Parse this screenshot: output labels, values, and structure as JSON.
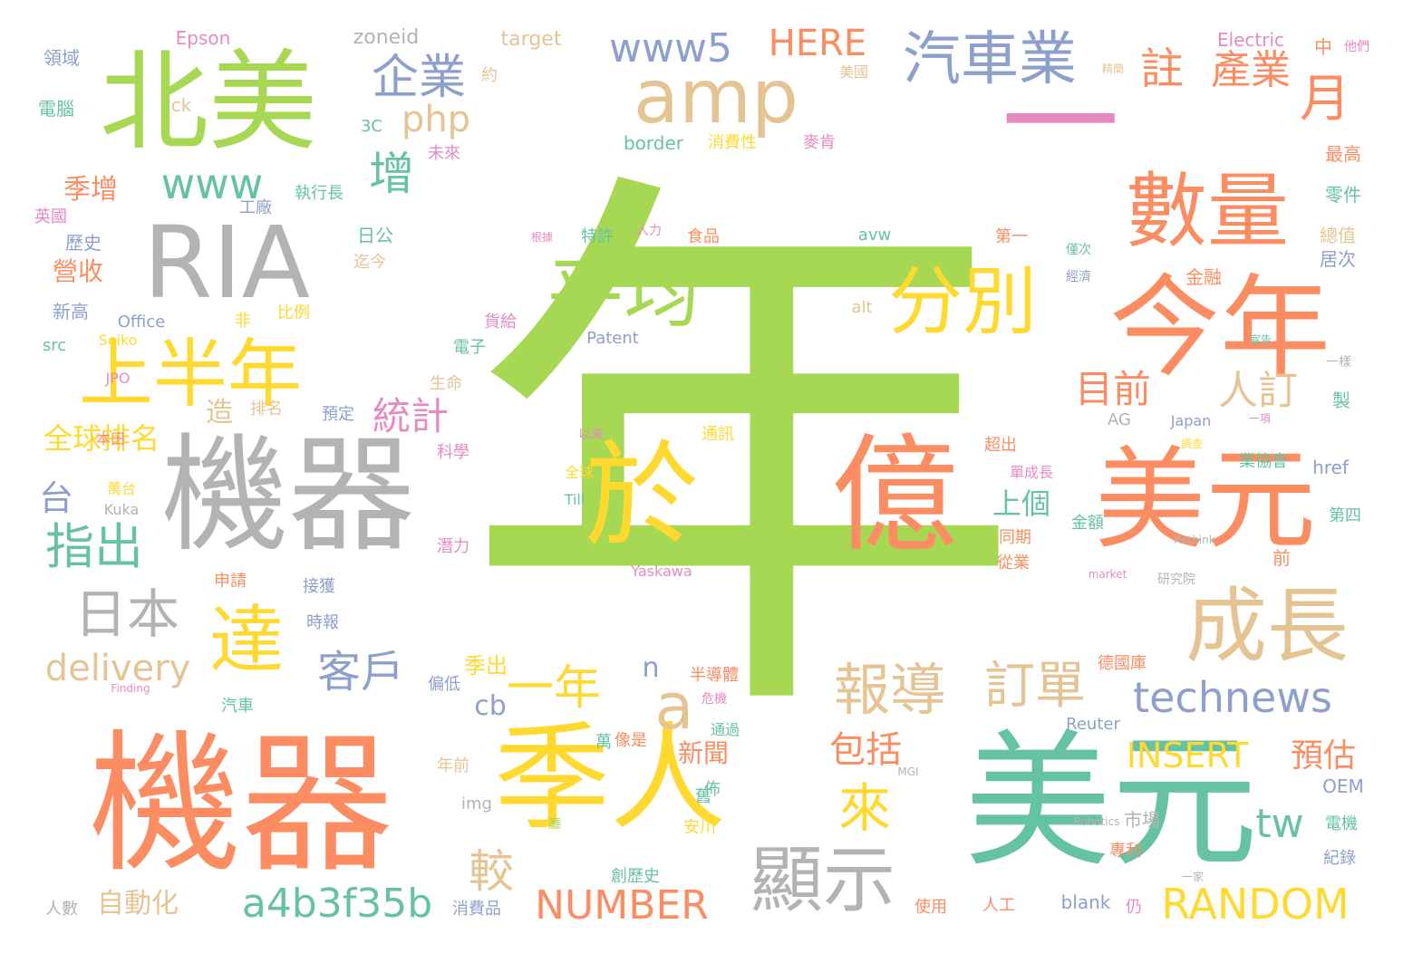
{
  "wordcloud": {
    "colors": {
      "green": "#a6d854",
      "orange": "#fc8d62",
      "teal": "#66c2a5",
      "yellow": "#ffd92f",
      "tan": "#e5c494",
      "gray": "#b3b3b3",
      "blue": "#8da0cb",
      "pink": "#e78ac3"
    },
    "words": [
      {
        "text": "年",
        "color": "green"
      },
      {
        "text": "一",
        "color": "pink"
      },
      {
        "text": "機器",
        "color": "orange"
      },
      {
        "text": "美元",
        "color": "teal"
      },
      {
        "text": "北美",
        "color": "green"
      },
      {
        "text": "RIA",
        "color": "gray"
      },
      {
        "text": "機器",
        "color": "gray"
      },
      {
        "text": "億",
        "color": "orange"
      },
      {
        "text": "美元",
        "color": "orange"
      },
      {
        "text": "今年",
        "color": "orange"
      },
      {
        "text": "於",
        "color": "yellow"
      },
      {
        "text": "季人",
        "color": "yellow"
      },
      {
        "text": "amp",
        "color": "tan"
      },
      {
        "text": "數量",
        "color": "orange"
      },
      {
        "text": "上半年",
        "color": "yellow"
      },
      {
        "text": "平均",
        "color": "green"
      },
      {
        "text": "分別",
        "color": "yellow"
      },
      {
        "text": "成長",
        "color": "tan"
      },
      {
        "text": "顯示",
        "color": "gray"
      },
      {
        "text": "達",
        "color": "yellow"
      },
      {
        "text": "汽車業",
        "color": "blue"
      },
      {
        "text": "a",
        "color": "tan"
      },
      {
        "text": "日本",
        "color": "gray"
      },
      {
        "text": "報導",
        "color": "tan"
      },
      {
        "text": "訂單",
        "color": "tan"
      },
      {
        "text": "technews",
        "color": "blue"
      },
      {
        "text": "一年",
        "color": "yellow"
      },
      {
        "text": "RANDOM",
        "color": "yellow"
      },
      {
        "text": "NUMBER",
        "color": "orange"
      },
      {
        "text": "a4b3f35b",
        "color": "teal"
      },
      {
        "text": "www5",
        "color": "blue"
      },
      {
        "text": "企業",
        "color": "blue"
      },
      {
        "text": "www",
        "color": "teal"
      },
      {
        "text": "HERE",
        "color": "orange"
      },
      {
        "text": "delivery",
        "color": "tan"
      },
      {
        "text": "客戶",
        "color": "blue"
      },
      {
        "text": "INSERT",
        "color": "yellow"
      },
      {
        "text": "指出",
        "color": "teal"
      },
      {
        "text": "月",
        "color": "orange"
      },
      {
        "text": "增",
        "color": "teal"
      },
      {
        "text": "來",
        "color": "yellow"
      },
      {
        "text": "較",
        "color": "tan"
      },
      {
        "text": "tw",
        "color": "teal"
      },
      {
        "text": "註",
        "color": "orange"
      },
      {
        "text": "產業",
        "color": "orange"
      },
      {
        "text": "php",
        "color": "tan"
      },
      {
        "text": "統計",
        "color": "pink"
      },
      {
        "text": "人訂",
        "color": "tan"
      },
      {
        "text": "目前",
        "color": "orange"
      },
      {
        "text": "預估",
        "color": "orange"
      },
      {
        "text": "包括",
        "color": "orange"
      },
      {
        "text": "台",
        "color": "blue"
      },
      {
        "text": "cb",
        "color": "blue"
      },
      {
        "text": "全球排名",
        "color": "yellow"
      },
      {
        "text": "自動化",
        "color": "tan"
      },
      {
        "text": "上個",
        "color": "teal"
      },
      {
        "text": "新聞",
        "color": "orange"
      },
      {
        "text": "季增",
        "color": "orange"
      },
      {
        "text": "營收",
        "color": "orange"
      },
      {
        "text": "n",
        "color": "blue"
      },
      {
        "text": "造",
        "color": "tan"
      },
      {
        "text": "季出",
        "color": "yellow"
      },
      {
        "text": "zoneid",
        "color": "gray"
      },
      {
        "text": "target",
        "color": "tan"
      },
      {
        "text": "Epson",
        "color": "pink"
      },
      {
        "text": "Electric",
        "color": "pink"
      },
      {
        "text": "border",
        "color": "teal"
      },
      {
        "text": "消費性",
        "color": "yellow"
      },
      {
        "text": "麥肯",
        "color": "pink"
      },
      {
        "text": "執行長",
        "color": "teal"
      },
      {
        "text": "領域",
        "color": "blue"
      },
      {
        "text": "電腦",
        "color": "teal"
      },
      {
        "text": "ck",
        "color": "tan"
      },
      {
        "text": "約",
        "color": "tan"
      },
      {
        "text": "3C",
        "color": "teal"
      },
      {
        "text": "未來",
        "color": "pink"
      },
      {
        "text": "美國",
        "color": "tan"
      },
      {
        "text": "精簡",
        "color": "tan"
      },
      {
        "text": "中",
        "color": "orange"
      },
      {
        "text": "他們",
        "color": "pink"
      },
      {
        "text": "最高",
        "color": "orange"
      },
      {
        "text": "零件",
        "color": "teal"
      },
      {
        "text": "總值",
        "color": "tan"
      },
      {
        "text": "居次",
        "color": "blue"
      },
      {
        "text": "英國",
        "color": "pink"
      },
      {
        "text": "工廠",
        "color": "blue"
      },
      {
        "text": "歷史",
        "color": "blue"
      },
      {
        "text": "日公",
        "color": "teal"
      },
      {
        "text": "迄今",
        "color": "tan"
      },
      {
        "text": "食品",
        "color": "orange"
      },
      {
        "text": "人力",
        "color": "pink"
      },
      {
        "text": "特許",
        "color": "teal"
      },
      {
        "text": "根據",
        "color": "pink"
      },
      {
        "text": "第一",
        "color": "orange"
      },
      {
        "text": "avw",
        "color": "teal"
      },
      {
        "text": "比例",
        "color": "yellow"
      },
      {
        "text": "新高",
        "color": "blue"
      },
      {
        "text": "Office",
        "color": "blue"
      },
      {
        "text": "src",
        "color": "teal"
      },
      {
        "text": "Seiko",
        "color": "yellow"
      },
      {
        "text": "JPO",
        "color": "pink"
      },
      {
        "text": "非",
        "color": "yellow"
      },
      {
        "text": "alt",
        "color": "tan"
      },
      {
        "text": "Patent",
        "color": "blue"
      },
      {
        "text": "貨給",
        "color": "pink"
      },
      {
        "text": "電子",
        "color": "teal"
      },
      {
        "text": "生命",
        "color": "tan"
      },
      {
        "text": "排名",
        "color": "tan"
      },
      {
        "text": "預定",
        "color": "blue"
      },
      {
        "text": "本田",
        "color": "orange"
      },
      {
        "text": "萬台",
        "color": "yellow"
      },
      {
        "text": "Kuka",
        "color": "gray"
      },
      {
        "text": "科學",
        "color": "pink"
      },
      {
        "text": "潛力",
        "color": "pink"
      },
      {
        "text": "以來",
        "color": "pink"
      },
      {
        "text": "通訊",
        "color": "yellow"
      },
      {
        "text": "全球",
        "color": "yellow"
      },
      {
        "text": "Till",
        "color": "teal"
      },
      {
        "text": "Yaskawa",
        "color": "pink"
      },
      {
        "text": "申請",
        "color": "orange"
      },
      {
        "text": "接獲",
        "color": "blue"
      },
      {
        "text": "時報",
        "color": "blue"
      },
      {
        "text": "僅次",
        "color": "teal"
      },
      {
        "text": "經濟",
        "color": "blue"
      },
      {
        "text": "金融",
        "color": "orange"
      },
      {
        "text": "宣告",
        "color": "teal"
      },
      {
        "text": "一樣",
        "color": "gray"
      },
      {
        "text": "製",
        "color": "teal"
      },
      {
        "text": "AG",
        "color": "gray"
      },
      {
        "text": "Japan",
        "color": "blue"
      },
      {
        "text": "一項",
        "color": "pink"
      },
      {
        "text": "調查",
        "color": "yellow"
      },
      {
        "text": "超出",
        "color": "orange"
      },
      {
        "text": "單成長",
        "color": "pink"
      },
      {
        "text": "業協會",
        "color": "teal"
      },
      {
        "text": "href",
        "color": "blue"
      },
      {
        "text": "同期",
        "color": "orange"
      },
      {
        "text": "從業",
        "color": "orange"
      },
      {
        "text": "金額",
        "color": "teal"
      },
      {
        "text": "第四",
        "color": "teal"
      },
      {
        "text": "前",
        "color": "orange"
      },
      {
        "text": "Rethink",
        "color": "gray"
      },
      {
        "text": "market",
        "color": "pink"
      },
      {
        "text": "研究院",
        "color": "gray"
      },
      {
        "text": "德國庫",
        "color": "orange"
      },
      {
        "text": "半導體",
        "color": "orange"
      },
      {
        "text": "偏低",
        "color": "blue"
      },
      {
        "text": "危機",
        "color": "pink"
      },
      {
        "text": "汽車",
        "color": "teal"
      },
      {
        "text": "像是",
        "color": "orange"
      },
      {
        "text": "通過",
        "color": "teal"
      },
      {
        "text": "Reuter",
        "color": "blue"
      },
      {
        "text": "萬",
        "color": "teal"
      },
      {
        "text": "年前",
        "color": "tan"
      },
      {
        "text": "佈",
        "color": "teal"
      },
      {
        "text": "舊",
        "color": "teal"
      },
      {
        "text": "MGI",
        "color": "gray"
      },
      {
        "text": "OEM",
        "color": "blue"
      },
      {
        "text": "img",
        "color": "gray"
      },
      {
        "text": "安川",
        "color": "yellow"
      },
      {
        "text": "Robotics",
        "color": "gray"
      },
      {
        "text": "市場",
        "color": "gray"
      },
      {
        "text": "電機",
        "color": "teal"
      },
      {
        "text": "專利",
        "color": "orange"
      },
      {
        "text": "紀錄",
        "color": "blue"
      },
      {
        "text": "創歷史",
        "color": "teal"
      },
      {
        "text": "人數",
        "color": "gray"
      },
      {
        "text": "消費品",
        "color": "blue"
      },
      {
        "text": "blank",
        "color": "blue"
      },
      {
        "text": "使用",
        "color": "orange"
      },
      {
        "text": "人工",
        "color": "orange"
      },
      {
        "text": "仍",
        "color": "pink"
      },
      {
        "text": "一家",
        "color": "gray"
      },
      {
        "text": "廳",
        "color": "green"
      },
      {
        "text": "Finding",
        "color": "pink"
      }
    ]
  }
}
